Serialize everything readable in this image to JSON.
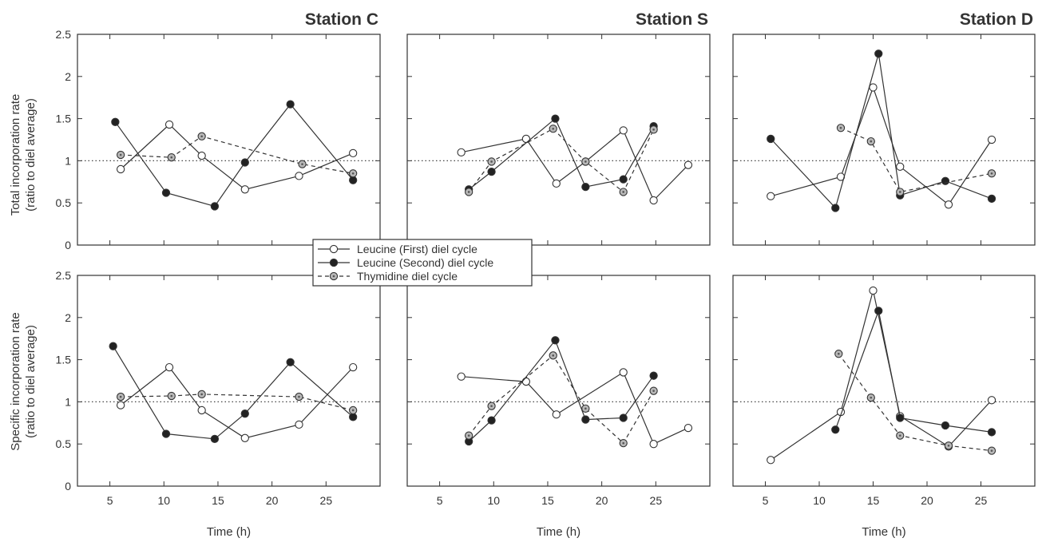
{
  "figure": {
    "y_label_top": [
      "Total incorporation rate",
      "(ratio to diel average)"
    ],
    "y_label_bottom": [
      "Specific incorporation rate",
      "(ratio to diel average)"
    ],
    "x_label": "Time (h)",
    "y_ticks": [
      "0",
      "0.5",
      "1",
      "1.5",
      "2",
      "2.5"
    ],
    "x_ticks": [
      "5",
      "10",
      "15",
      "20",
      "25"
    ],
    "legend": {
      "leucine_first": "Leucine (First) diel cycle",
      "leucine_second": "Leucine (Second) diel cycle",
      "thymidine": "Thymidine diel cycle"
    },
    "colors": {
      "line": "#333333",
      "open_fill": "#ffffff",
      "filled": "#222222",
      "thymidine_fill": "#b8b8b8"
    }
  },
  "chart_data": [
    {
      "type": "line",
      "station": "Station C",
      "panel": "total",
      "xlim": [
        2,
        30
      ],
      "ylim": [
        0,
        2.5
      ],
      "reference_line": 1,
      "series": [
        {
          "name": "Leucine (First) diel cycle",
          "x": [
            6,
            10.5,
            13.5,
            17.5,
            22.5,
            27.5
          ],
          "y": [
            0.9,
            1.43,
            1.06,
            0.66,
            0.82,
            1.09
          ]
        },
        {
          "name": "Leucine (Second) diel cycle",
          "x": [
            5.5,
            10.2,
            14.7,
            17.5,
            21.7,
            27.5
          ],
          "y": [
            1.46,
            0.62,
            0.46,
            0.98,
            1.67,
            0.77
          ]
        },
        {
          "name": "Thymidine diel cycle",
          "x": [
            6,
            10.7,
            13.5,
            22.8,
            27.5
          ],
          "y": [
            1.07,
            1.04,
            1.29,
            0.96,
            0.85
          ]
        }
      ]
    },
    {
      "type": "line",
      "station": "Station S",
      "panel": "total",
      "xlim": [
        2,
        30
      ],
      "ylim": [
        0,
        2.5
      ],
      "reference_line": 1,
      "series": [
        {
          "name": "Leucine (First) diel cycle",
          "x": [
            7,
            13,
            15.8,
            18.5,
            22,
            24.8,
            28
          ],
          "y": [
            1.1,
            1.26,
            0.73,
            0.99,
            1.36,
            0.53,
            0.95
          ]
        },
        {
          "name": "Leucine (Second) diel cycle",
          "x": [
            7.7,
            9.8,
            15.7,
            18.5,
            22,
            24.8
          ],
          "y": [
            0.66,
            0.87,
            1.5,
            0.69,
            0.78,
            1.41
          ]
        },
        {
          "name": "Thymidine diel cycle",
          "x": [
            7.7,
            9.8,
            15.5,
            18.5,
            22,
            24.8
          ],
          "y": [
            0.63,
            0.99,
            1.38,
            0.99,
            0.63,
            1.37
          ]
        }
      ]
    },
    {
      "type": "line",
      "station": "Station D",
      "panel": "total",
      "xlim": [
        2,
        30
      ],
      "ylim": [
        0,
        2.5
      ],
      "reference_line": 1,
      "series": [
        {
          "name": "Leucine (First) diel cycle",
          "x": [
            5.5,
            12,
            15,
            17.5,
            22,
            26
          ],
          "y": [
            0.58,
            0.81,
            1.87,
            0.93,
            0.48,
            1.25
          ]
        },
        {
          "name": "Leucine (Second) diel cycle",
          "x": [
            5.5,
            11.5,
            15.5,
            17.5,
            21.7,
            26
          ],
          "y": [
            1.26,
            0.44,
            2.27,
            0.59,
            0.76,
            0.55
          ]
        },
        {
          "name": "Thymidine diel cycle",
          "x": [
            12,
            14.8,
            17.5,
            26
          ],
          "y": [
            1.39,
            1.23,
            0.63,
            0.85
          ]
        }
      ]
    },
    {
      "type": "line",
      "station": "Station C",
      "panel": "specific",
      "xlim": [
        2,
        30
      ],
      "ylim": [
        0,
        2.5
      ],
      "reference_line": 1,
      "series": [
        {
          "name": "Leucine (First) diel cycle",
          "x": [
            6,
            10.5,
            13.5,
            17.5,
            22.5,
            27.5
          ],
          "y": [
            0.96,
            1.41,
            0.9,
            0.57,
            0.73,
            1.41
          ]
        },
        {
          "name": "Leucine (Second) diel cycle",
          "x": [
            5.3,
            10.2,
            14.7,
            17.5,
            21.7,
            27.5
          ],
          "y": [
            1.66,
            0.62,
            0.56,
            0.86,
            1.47,
            0.82
          ]
        },
        {
          "name": "Thymidine diel cycle",
          "x": [
            6,
            10.7,
            13.5,
            22.5,
            27.5
          ],
          "y": [
            1.06,
            1.07,
            1.09,
            1.06,
            0.9
          ]
        }
      ]
    },
    {
      "type": "line",
      "station": "Station S",
      "panel": "specific",
      "xlim": [
        2,
        30
      ],
      "ylim": [
        0,
        2.5
      ],
      "reference_line": 1,
      "series": [
        {
          "name": "Leucine (First) diel cycle",
          "x": [
            7,
            13,
            15.8,
            22,
            24.8,
            28
          ],
          "y": [
            1.3,
            1.24,
            0.85,
            1.35,
            0.5,
            0.69
          ]
        },
        {
          "name": "Leucine (Second) diel cycle",
          "x": [
            7.7,
            9.8,
            15.7,
            18.5,
            22,
            24.8
          ],
          "y": [
            0.53,
            0.78,
            1.73,
            0.79,
            0.81,
            1.31
          ]
        },
        {
          "name": "Thymidine diel cycle",
          "x": [
            7.7,
            9.8,
            15.5,
            18.5,
            22,
            24.8
          ],
          "y": [
            0.6,
            0.95,
            1.55,
            0.92,
            0.51,
            1.13
          ]
        }
      ]
    },
    {
      "type": "line",
      "station": "Station D",
      "panel": "specific",
      "xlim": [
        2,
        30
      ],
      "ylim": [
        0,
        2.5
      ],
      "reference_line": 1,
      "series": [
        {
          "name": "Leucine (First) diel cycle",
          "x": [
            5.5,
            12,
            15,
            17.5,
            22,
            26
          ],
          "y": [
            0.31,
            0.88,
            2.32,
            0.83,
            0.47,
            1.02
          ]
        },
        {
          "name": "Leucine (Second) diel cycle",
          "x": [
            11.5,
            15.5,
            17.5,
            21.7,
            26
          ],
          "y": [
            0.67,
            2.08,
            0.81,
            0.72,
            0.64
          ]
        },
        {
          "name": "Thymidine diel cycle",
          "x": [
            11.8,
            14.8,
            17.5,
            22,
            26
          ],
          "y": [
            1.57,
            1.05,
            0.6,
            0.48,
            0.42
          ]
        }
      ]
    }
  ]
}
